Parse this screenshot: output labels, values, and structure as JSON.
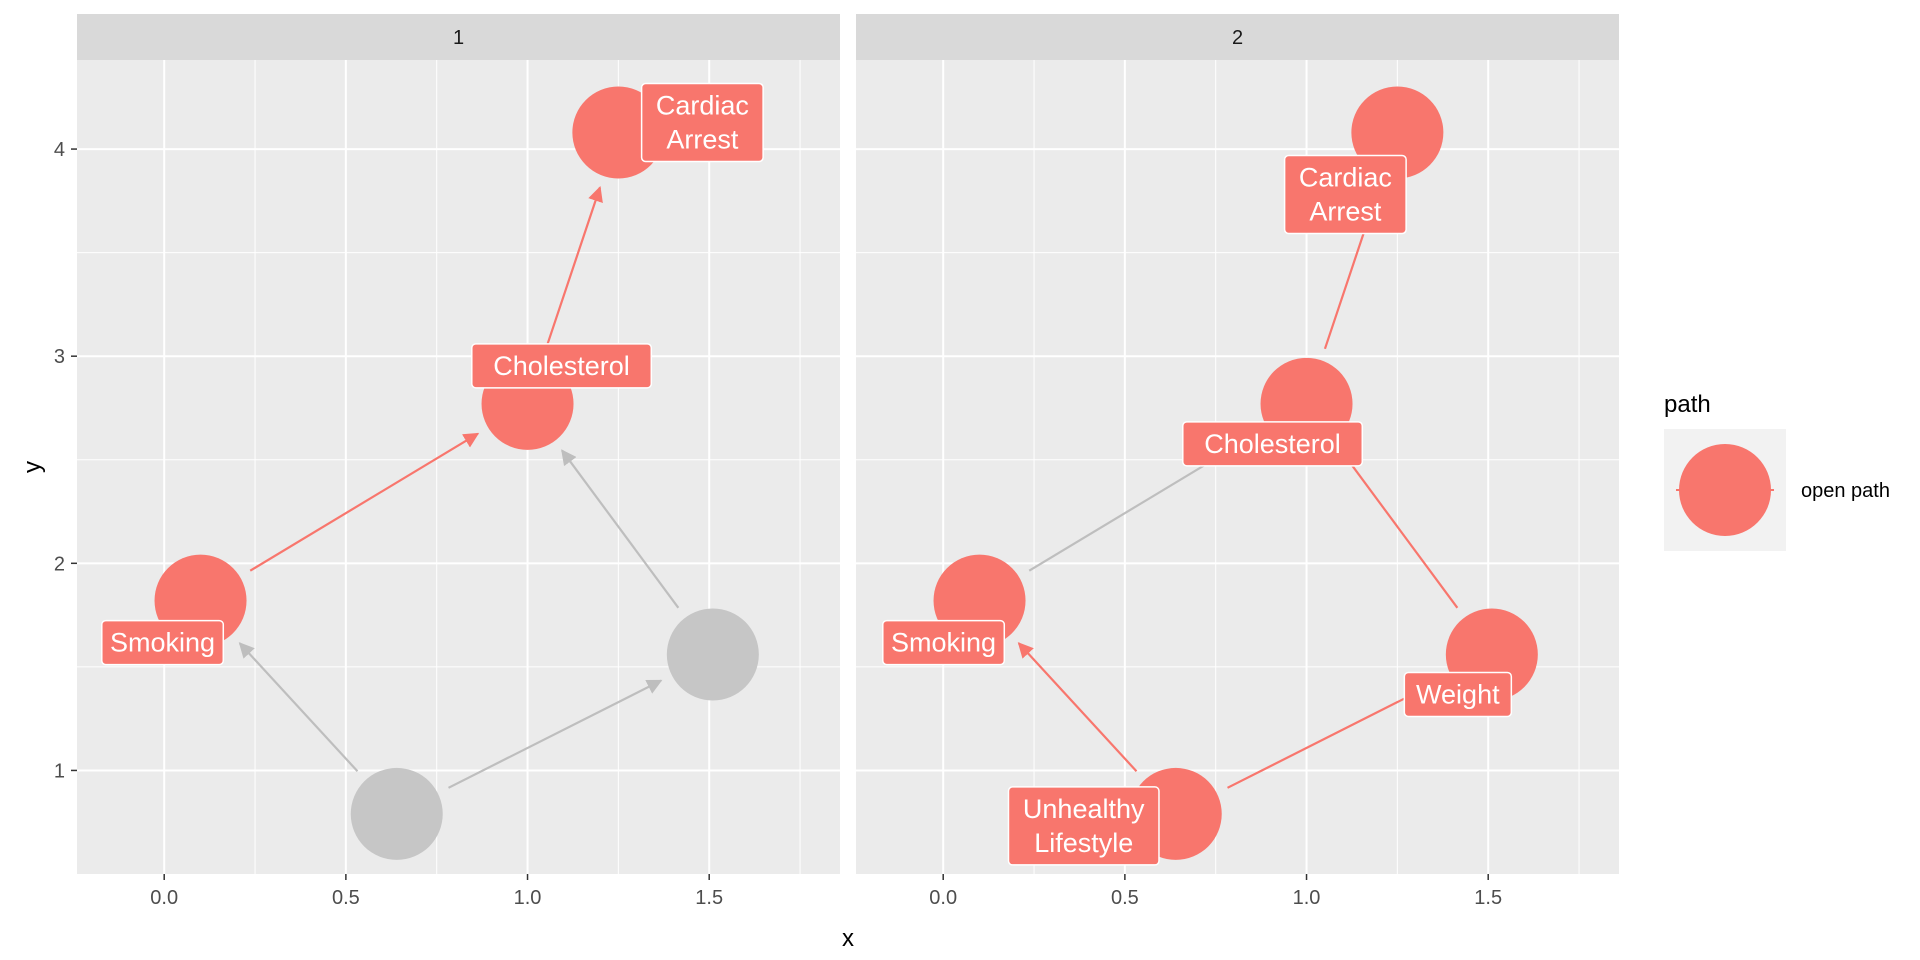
{
  "chart_data": {
    "type": "dag",
    "facets": [
      {
        "strip": "1",
        "nodes": [
          {
            "id": "cardiac",
            "label": [
              "Cardiac",
              "Arrest"
            ],
            "x": 1.25,
            "y": 4.08,
            "status": "open path"
          },
          {
            "id": "chol",
            "label": [
              "Cholesterol"
            ],
            "x": 1.0,
            "y": 2.77,
            "status": "open path"
          },
          {
            "id": "smoking",
            "label": [
              "Smoking"
            ],
            "x": 0.1,
            "y": 1.82,
            "status": "open path"
          },
          {
            "id": "weight",
            "label": [],
            "x": 1.51,
            "y": 1.56,
            "status": "closed"
          },
          {
            "id": "lifestyle",
            "label": [],
            "x": 0.64,
            "y": 0.79,
            "status": "closed"
          }
        ],
        "edges": [
          {
            "from": "chol",
            "to": "cardiac",
            "status": "open path"
          },
          {
            "from": "smoking",
            "to": "chol",
            "status": "open path"
          },
          {
            "from": "weight",
            "to": "chol",
            "status": "closed"
          },
          {
            "from": "lifestyle",
            "to": "smoking",
            "status": "closed"
          },
          {
            "from": "lifestyle",
            "to": "weight",
            "status": "closed"
          }
        ]
      },
      {
        "strip": "2",
        "nodes": [
          {
            "id": "cardiac",
            "label": [
              "Cardiac",
              "Arrest"
            ],
            "x": 1.25,
            "y": 4.08,
            "status": "open path"
          },
          {
            "id": "chol",
            "label": [
              "Cholesterol"
            ],
            "x": 1.0,
            "y": 2.77,
            "status": "open path"
          },
          {
            "id": "smoking",
            "label": [
              "Smoking"
            ],
            "x": 0.1,
            "y": 1.82,
            "status": "open path"
          },
          {
            "id": "weight",
            "label": [
              "Weight"
            ],
            "x": 1.51,
            "y": 1.56,
            "status": "open path"
          },
          {
            "id": "lifestyle",
            "label": [
              "Unhealthy",
              "Lifestyle"
            ],
            "x": 0.64,
            "y": 0.79,
            "status": "open path"
          }
        ],
        "edges": [
          {
            "from": "chol",
            "to": "cardiac",
            "status": "open path",
            "arrow": false
          },
          {
            "from": "smoking",
            "to": "chol",
            "status": "closed",
            "arrow": false
          },
          {
            "from": "weight",
            "to": "chol",
            "status": "open path",
            "arrow": false
          },
          {
            "from": "lifestyle",
            "to": "smoking",
            "status": "open path",
            "arrow": true
          },
          {
            "from": "lifestyle",
            "to": "weight",
            "status": "open path",
            "arrow": false
          }
        ]
      }
    ],
    "x_ticks": [
      "0.0",
      "0.5",
      "1.0",
      "1.5"
    ],
    "x_tick_values": [
      0.0,
      0.5,
      1.0,
      1.5
    ],
    "y_ticks": [
      "1",
      "2",
      "3",
      "4"
    ],
    "y_tick_values": [
      1,
      2,
      3,
      4
    ],
    "xlim": [
      -0.24,
      1.86
    ],
    "ylim": [
      0.5,
      4.43
    ],
    "xlabel": "x",
    "ylabel": "y",
    "legend": {
      "title": "path",
      "entries": [
        "open path"
      ]
    },
    "colors": {
      "open": "#F8766D",
      "closed": "#C6C6C6",
      "closed_edge": "#BEBEBE",
      "panel": "#EBEBEB",
      "strip": "#D9D9D9"
    }
  }
}
